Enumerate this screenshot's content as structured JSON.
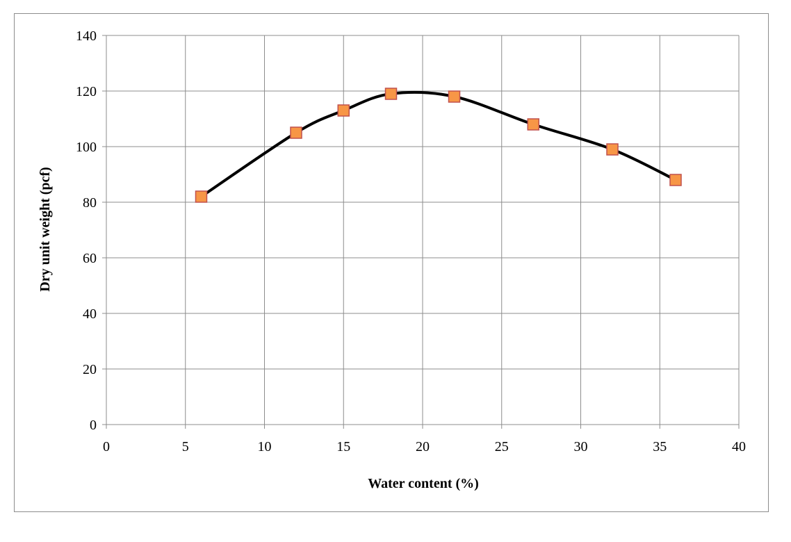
{
  "chart_data": {
    "type": "scatter",
    "title": "",
    "xlabel": "Water content (%)",
    "ylabel": "Dry unit weight (pcf)",
    "xlim": [
      0,
      40
    ],
    "ylim": [
      0,
      140
    ],
    "xticks": [
      0,
      5,
      10,
      15,
      20,
      25,
      30,
      35,
      40
    ],
    "yticks": [
      0,
      20,
      40,
      60,
      80,
      100,
      120,
      140
    ],
    "grid": true,
    "smooth_line": true,
    "series": [
      {
        "x": [
          6,
          12,
          15,
          18,
          22,
          27,
          32,
          36
        ],
        "y": [
          82,
          105,
          113,
          119,
          118,
          108,
          99,
          88
        ],
        "marker": "square",
        "marker_color": "#f79646",
        "marker_edge_color": "#c0504d",
        "line_color": "#000000"
      }
    ]
  }
}
